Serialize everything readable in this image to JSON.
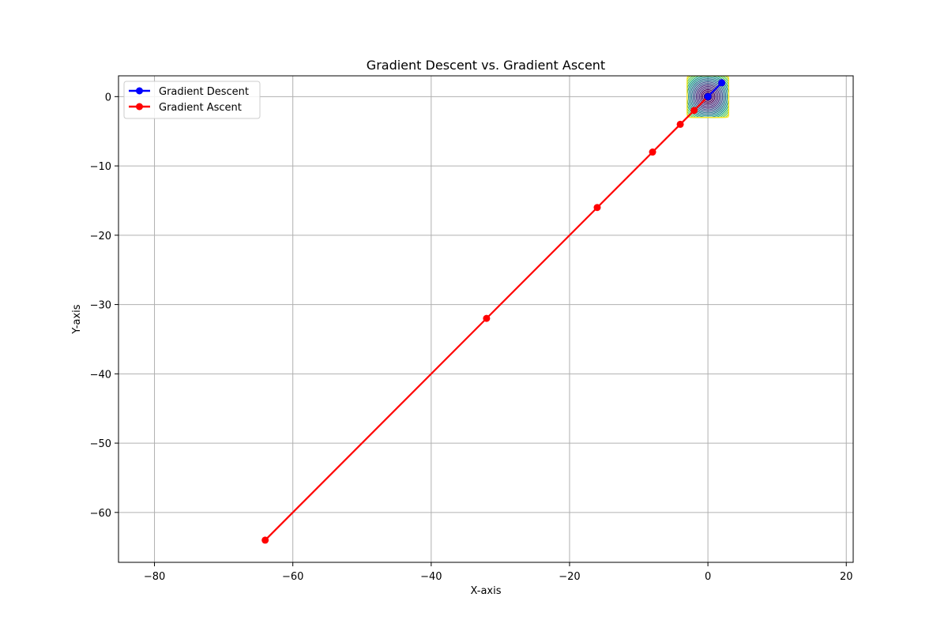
{
  "chart_data": {
    "type": "line",
    "title": "Gradient Descent vs. Gradient Ascent",
    "xlabel": "X-axis",
    "ylabel": "Y-axis",
    "xlim": [
      -85.2,
      21
    ],
    "ylim": [
      -67.2,
      3
    ],
    "xticks": [
      -80,
      -60,
      -40,
      -20,
      0,
      20
    ],
    "yticks": [
      0,
      -10,
      -20,
      -30,
      -40,
      -50,
      -60
    ],
    "xtick_labels": [
      "−80",
      "−60",
      "−40",
      "−20",
      "0",
      "20"
    ],
    "ytick_labels": [
      "0",
      "−10",
      "−20",
      "−30",
      "−40",
      "−50",
      "−60"
    ],
    "grid": true,
    "legend_position": "top-left",
    "series": [
      {
        "name": "Gradient Descent",
        "color": "#0000ff",
        "marker": "circle",
        "x": [
          2,
          0
        ],
        "y": [
          2,
          0
        ]
      },
      {
        "name": "Gradient Ascent",
        "color": "#ff0000",
        "marker": "circle",
        "x": [
          2,
          -2,
          -4,
          -8,
          -16,
          -32,
          -64
        ],
        "y": [
          2,
          -2,
          -4,
          -8,
          -16,
          -32,
          -64
        ]
      }
    ],
    "contour": {
      "function": "x^2 + y^2",
      "center": [
        0,
        0
      ],
      "x_range": [
        -3,
        3
      ],
      "y_range": [
        -3,
        3
      ],
      "colormap": "viridis",
      "levels": [
        0.3,
        0.6,
        1.0,
        1.5,
        2.1,
        2.8,
        3.6,
        4.5,
        5.5,
        6.6,
        7.8,
        9.1,
        10.5,
        12.0,
        13.6,
        15.3,
        17.1
      ]
    }
  }
}
